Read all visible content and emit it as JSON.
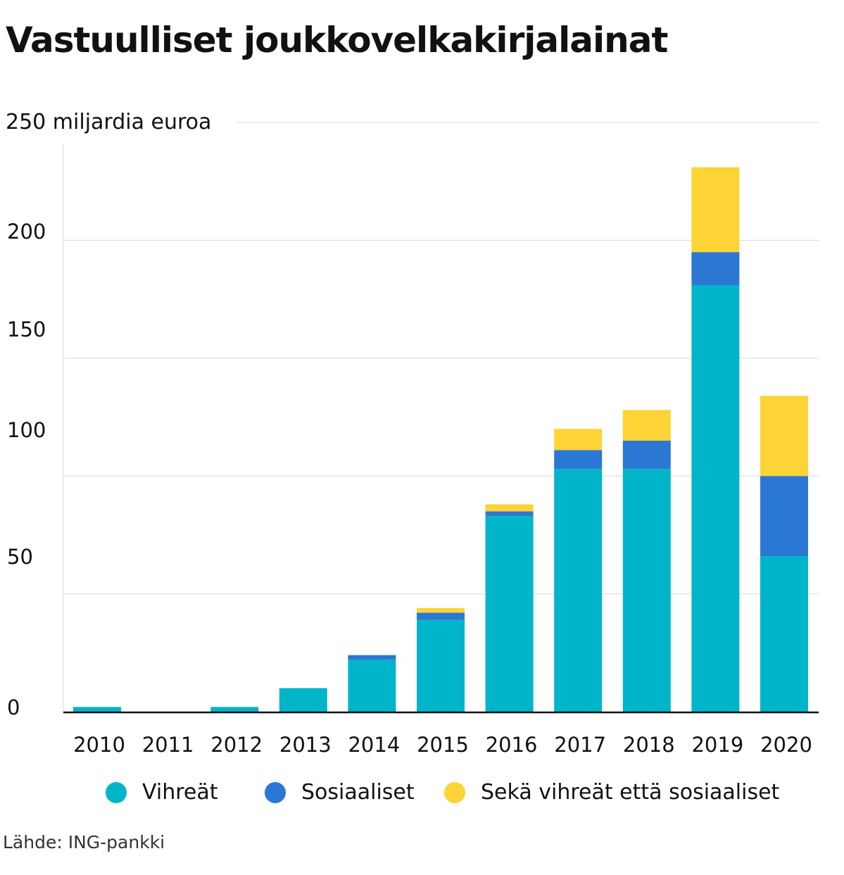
{
  "title": "Vastuulliset joukkovelkakirjalainat",
  "source": "Lähde: ING-pankki",
  "chart_data": {
    "type": "bar",
    "stacked": true,
    "title": "Vastuulliset joukkovelkakirjalainat",
    "ylabel": "250 miljardia euroa",
    "xlabel": "",
    "ylim": [
      0,
      250
    ],
    "yticks": [
      "0",
      "50",
      "100",
      "150",
      "200",
      "250 miljardia euroa"
    ],
    "categories": [
      "2010",
      "2011",
      "2012",
      "2013",
      "2014",
      "2015",
      "2016",
      "2017",
      "2018",
      "2019",
      "2020"
    ],
    "series": [
      {
        "name": "Vihreät",
        "color": "#00b5c9",
        "values": [
          2,
          0,
          2,
          10,
          22,
          39,
          83,
          103,
          103,
          181,
          66
        ]
      },
      {
        "name": "Sosiaaliset",
        "color": "#2b78d4",
        "values": [
          0,
          0,
          0,
          0,
          2,
          3,
          2,
          8,
          12,
          14,
          34
        ]
      },
      {
        "name": "Sekä vihreät että sosiaaliset",
        "color": "#fdd335",
        "values": [
          0,
          0,
          0,
          0,
          0,
          2,
          3,
          9,
          13,
          36,
          34
        ]
      }
    ],
    "grid": true,
    "legend": "bottom"
  }
}
